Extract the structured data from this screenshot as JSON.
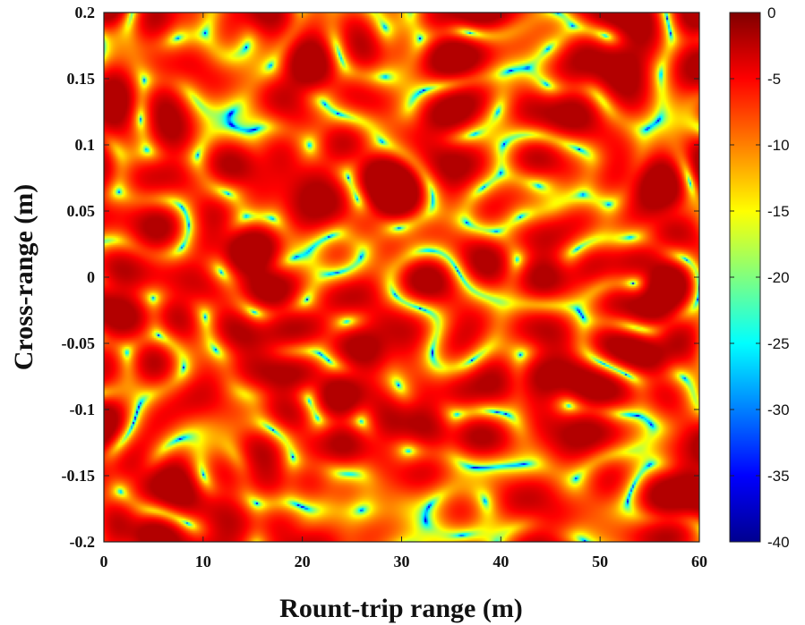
{
  "chart_data": {
    "type": "heatmap",
    "xlabel": "Rount-trip range (m)",
    "ylabel": "Cross-range (m)",
    "xlim": [
      0,
      60
    ],
    "ylim": [
      -0.2,
      0.2
    ],
    "x_ticks": [
      0,
      10,
      20,
      30,
      40,
      50,
      60
    ],
    "y_ticks": [
      -0.2,
      -0.15,
      -0.1,
      -0.05,
      0,
      0.05,
      0.1,
      0.15,
      0.2
    ],
    "y_tick_labels": [
      "-0.2",
      "-0.15",
      "-0.1",
      "-0.05",
      "0",
      "0.05",
      "0.1",
      "0.15",
      "0.2"
    ],
    "colorbar": {
      "range": [
        -40,
        0
      ],
      "ticks": [
        0,
        -5,
        -10,
        -15,
        -20,
        -25,
        -30,
        -35,
        -40
      ],
      "colormap": "jet"
    },
    "z_description": "speckle-like intensity field ranging from about -40 to 0",
    "grid": false
  }
}
